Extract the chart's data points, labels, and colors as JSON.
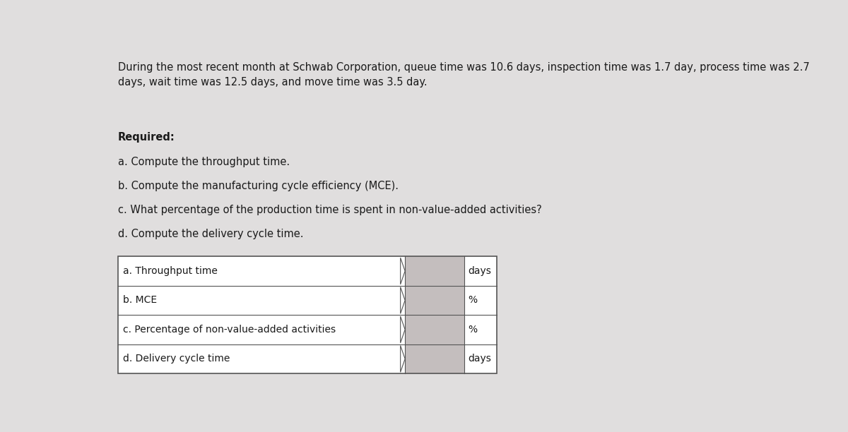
{
  "title_text": "During the most recent month at Schwab Corporation, queue time was 10.6 days, inspection time was 1.7 day, process time was 2.7\ndays, wait time was 12.5 days, and move time was 3.5 day.",
  "required_label": "Required:",
  "requirements": [
    "a. Compute the throughput time.",
    "b. Compute the manufacturing cycle efficiency (MCE).",
    "c. What percentage of the production time is spent in non-value-added activities?",
    "d. Compute the delivery cycle time."
  ],
  "table_rows": [
    {
      "label": "a. Throughput time",
      "unit": "days"
    },
    {
      "label": "b. MCE",
      "unit": "%"
    },
    {
      "label": "c. Percentage of non-value-added activities",
      "unit": "%"
    },
    {
      "label": "d. Delivery cycle time",
      "unit": "days"
    }
  ],
  "background_color": "#e0dede",
  "table_bg_white": "#ffffff",
  "table_bg_input": "#c4bebe",
  "table_border_color": "#555555",
  "text_color": "#1a1a1a",
  "title_fontsize": 10.5,
  "body_fontsize": 10.5,
  "table_fontsize": 10.0
}
